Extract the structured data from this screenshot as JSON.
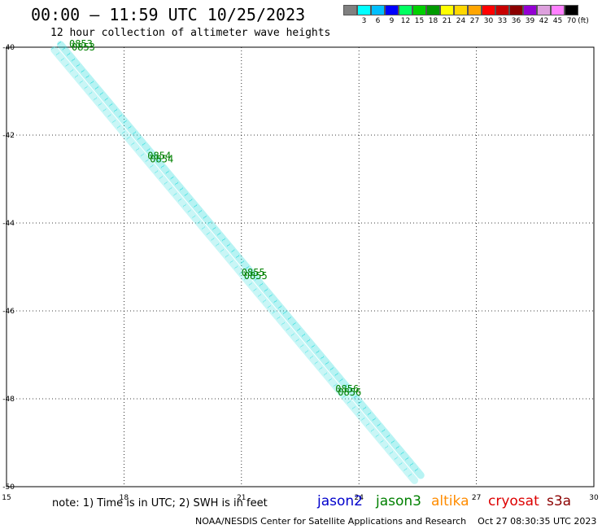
{
  "header": {
    "title": "00:00 – 11:59 UTC 10/25/2023",
    "subtitle": "12 hour collection of altimeter wave heights"
  },
  "legend": {
    "unit": "(ft)",
    "bins": [
      {
        "label": "",
        "color": "#808080"
      },
      {
        "label": "3",
        "color": "#00ffff"
      },
      {
        "label": "6",
        "color": "#00bfff"
      },
      {
        "label": "9",
        "color": "#0000ff"
      },
      {
        "label": "12",
        "color": "#00ff60"
      },
      {
        "label": "15",
        "color": "#00d000"
      },
      {
        "label": "18",
        "color": "#009a00"
      },
      {
        "label": "21",
        "color": "#ffff00"
      },
      {
        "label": "24",
        "color": "#ffd700"
      },
      {
        "label": "27",
        "color": "#ffa500"
      },
      {
        "label": "30",
        "color": "#ff0000"
      },
      {
        "label": "33",
        "color": "#c80000"
      },
      {
        "label": "36",
        "color": "#8b0000"
      },
      {
        "label": "39",
        "color": "#9400d3"
      },
      {
        "label": "42",
        "color": "#dda0dd"
      },
      {
        "label": "45",
        "color": "#ff80ff"
      },
      {
        "label": "70",
        "color": "#000000"
      }
    ]
  },
  "map": {
    "lon_range": [
      15,
      30
    ],
    "lat_range": [
      -50,
      -40
    ],
    "x_ticks": [
      "15",
      "18",
      "21",
      "24",
      "27",
      "30"
    ],
    "y_ticks": [
      "-40",
      "-42",
      "-44",
      "-46",
      "-48",
      "-50"
    ],
    "grid": "dotted",
    "track": {
      "start": {
        "lon": 16.3,
        "lat": -40.0
      },
      "end": {
        "lon": 25.5,
        "lat": -49.8
      },
      "color_a": "#33dddd",
      "color_b": "#66e8e8",
      "label_color": "#1a7a7a"
    },
    "time_labels": [
      {
        "text": "0853",
        "lon": 16.9,
        "lat": -40.0
      },
      {
        "text": "0854",
        "lon": 18.9,
        "lat": -42.55
      },
      {
        "text": "0855",
        "lon": 21.3,
        "lat": -45.2
      },
      {
        "text": "0856",
        "lon": 23.7,
        "lat": -47.85
      }
    ],
    "time_label_color": "#008000"
  },
  "note": "note: 1) Time is in UTC; 2) SWH is in feet",
  "satellites": [
    {
      "name": "jason2",
      "color": "#0000cc"
    },
    {
      "name": "jason3",
      "color": "#008000"
    },
    {
      "name": "altika",
      "color": "#ff8c00"
    },
    {
      "name": "cryosat",
      "color": "#dd0000"
    },
    {
      "name": "s3a",
      "color": "#8b0000"
    }
  ],
  "credit": "NOAA/NESDIS Center for Satellite Applications and Research    Oct 27 08:30:35 UTC 2023"
}
